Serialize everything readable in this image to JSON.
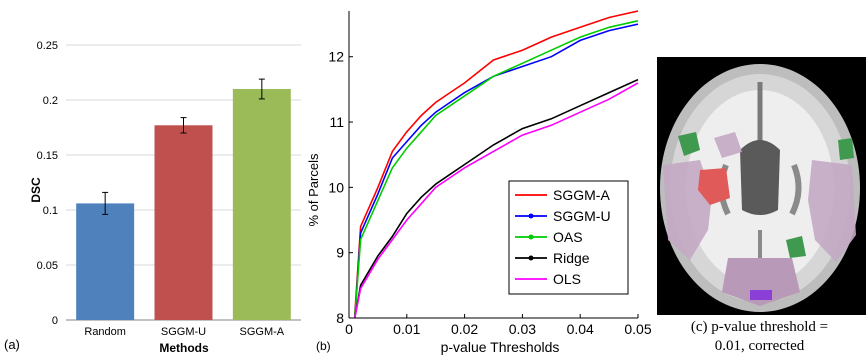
{
  "chart_data": [
    {
      "type": "bar",
      "panel_label": "(a)",
      "categories": [
        "Random",
        "SGGM-U",
        "SGGM-A"
      ],
      "values": [
        0.106,
        0.177,
        0.21
      ],
      "errors": [
        0.01,
        0.007,
        0.009
      ],
      "colors": [
        "#4F81BD",
        "#C0504D",
        "#9BBB59"
      ],
      "xlabel": "Methods",
      "ylabel": "DSC",
      "ylim": [
        0,
        0.25
      ],
      "yticks": [
        "0",
        "0.05",
        "0.1",
        "0.15",
        "0.2",
        "0.25"
      ],
      "grid": true
    },
    {
      "type": "line",
      "panel_label": "(b)",
      "xlabel": "p-value Thresholds",
      "ylabel": "% of Parcels",
      "xlim": [
        0,
        0.05
      ],
      "ylim": [
        8,
        12.7
      ],
      "xticks": [
        "0",
        "0.01",
        "0.02",
        "0.03",
        "0.04",
        "0.05"
      ],
      "yticks": [
        "8",
        "9",
        "10",
        "11",
        "12"
      ],
      "legend_position": "bottom-right",
      "x": [
        0.001,
        0.002,
        0.005,
        0.0075,
        0.01,
        0.0125,
        0.015,
        0.0175,
        0.02,
        0.025,
        0.03,
        0.035,
        0.04,
        0.045,
        0.05
      ],
      "series": [
        {
          "name": "SGGM-A",
          "color": "#ff0000",
          "marker": false,
          "values": [
            8.05,
            9.4,
            10.0,
            10.55,
            10.85,
            11.1,
            11.3,
            11.45,
            11.6,
            11.95,
            12.1,
            12.3,
            12.45,
            12.6,
            12.7
          ]
        },
        {
          "name": "SGGM-U",
          "color": "#0000ff",
          "marker": true,
          "values": [
            8.0,
            9.3,
            9.9,
            10.45,
            10.7,
            10.95,
            11.15,
            11.3,
            11.45,
            11.7,
            11.85,
            12.0,
            12.25,
            12.4,
            12.5
          ]
        },
        {
          "name": "OAS",
          "color": "#00cc00",
          "marker": true,
          "values": [
            8.0,
            9.2,
            9.8,
            10.3,
            10.6,
            10.85,
            11.1,
            11.25,
            11.4,
            11.7,
            11.9,
            12.1,
            12.3,
            12.45,
            12.55
          ]
        },
        {
          "name": "Ridge",
          "color": "#000000",
          "marker": true,
          "values": [
            7.98,
            8.5,
            8.95,
            9.25,
            9.6,
            9.85,
            10.05,
            10.2,
            10.35,
            10.65,
            10.9,
            11.05,
            11.25,
            11.45,
            11.65
          ]
        },
        {
          "name": "OLS",
          "color": "#ff00ff",
          "marker": false,
          "values": [
            7.95,
            8.45,
            8.9,
            9.2,
            9.5,
            9.75,
            10.0,
            10.15,
            10.3,
            10.55,
            10.8,
            10.95,
            11.15,
            11.35,
            11.6
          ]
        }
      ]
    }
  ],
  "panel_c": {
    "caption_line1": "(c) p-value threshold =",
    "caption_line2": "0.01, corrected"
  }
}
